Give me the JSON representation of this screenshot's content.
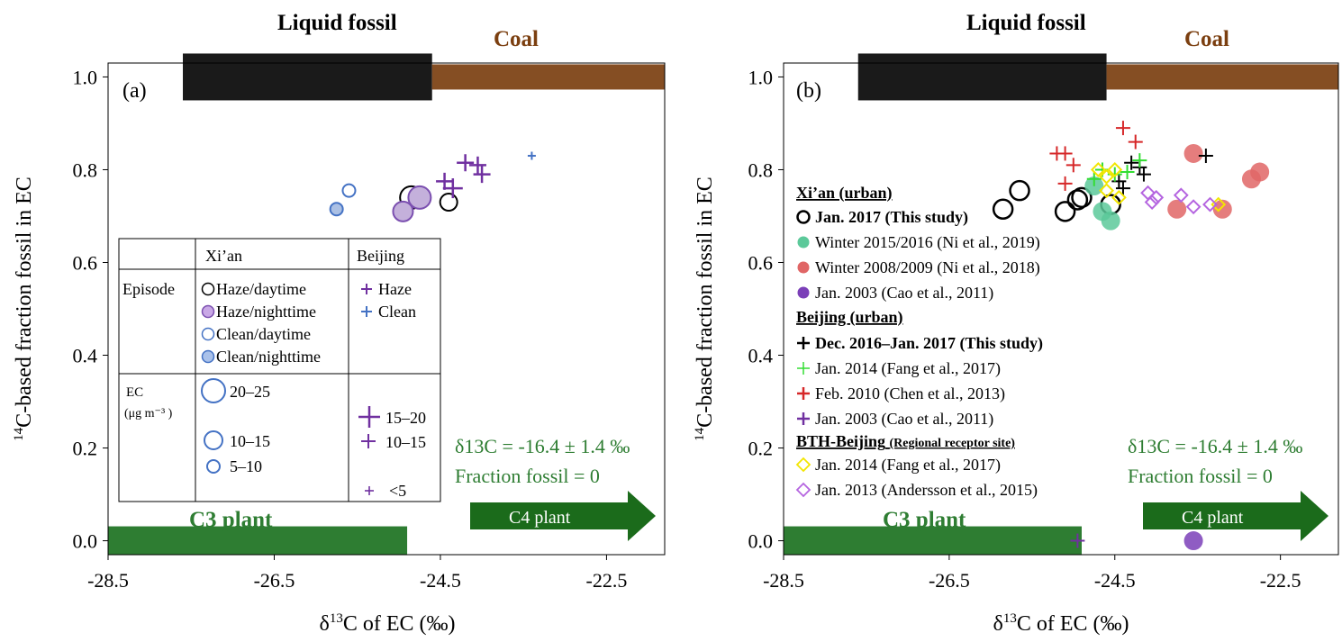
{
  "chart_data": [
    {
      "type": "scatter",
      "panel_label": "(a)",
      "xlabel": "δ13C of EC (‰)",
      "ylabel": "14C-based fraction fossil in EC",
      "xlim": [
        -28.5,
        -21.8
      ],
      "ylim": [
        -0.03,
        1.03
      ],
      "x_ticks": [
        "-28.5",
        "-26.5",
        "-24.5",
        "-22.5"
      ],
      "y_ticks": [
        "0.0",
        "0.2",
        "0.4",
        "0.6",
        "0.8",
        "1.0"
      ],
      "source_bands": [
        {
          "name": "Liquid fossil",
          "x_range": [
            -27.6,
            -24.6
          ],
          "y": 1.0,
          "color": "#1a1a1a"
        },
        {
          "name": "Coal",
          "x_range": [
            -24.6,
            -21.8
          ],
          "y": 1.0,
          "color": "#7b3f10"
        },
        {
          "name": "C3 plant",
          "x_range": [
            -28.5,
            -24.9
          ],
          "y": 0.0,
          "color": "#2e7d32"
        }
      ],
      "c4_arrow": {
        "label": "C4 plant",
        "color": "#1b6b1b"
      },
      "c4_annotation": [
        "δ13C = -16.4 ± 1.4 ‰",
        "Fraction fossil = 0"
      ],
      "series": [
        {
          "name": "Haze/daytime",
          "city": "Xi'an",
          "marker": "circle-open",
          "color": "#000000",
          "points": [
            {
              "x": -24.85,
              "y": 0.74,
              "size": "20–25"
            },
            {
              "x": -24.4,
              "y": 0.73,
              "size": "10–15"
            }
          ]
        },
        {
          "name": "Haze/nighttime",
          "city": "Xi'an",
          "marker": "circle-filled",
          "color": "#7b4fb0",
          "points": [
            {
              "x": -24.75,
              "y": 0.74,
              "size": "20–25"
            },
            {
              "x": -24.95,
              "y": 0.71,
              "size": "15–20"
            }
          ]
        },
        {
          "name": "Clean/daytime",
          "city": "Xi'an",
          "marker": "circle-open",
          "color": "#4472c4",
          "points": [
            {
              "x": -25.6,
              "y": 0.755,
              "size": "5–10"
            }
          ]
        },
        {
          "name": "Clean/nighttime",
          "city": "Xi'an",
          "marker": "circle-filled",
          "color": "#4472c4",
          "points": [
            {
              "x": -25.75,
              "y": 0.715,
              "size": "5–10"
            }
          ]
        },
        {
          "name": "Haze",
          "city": "Beijing",
          "marker": "plus",
          "color": "#7030a0",
          "points": [
            {
              "x": -24.2,
              "y": 0.815,
              "size": "10–15"
            },
            {
              "x": -24.05,
              "y": 0.81,
              "size": "10–15"
            },
            {
              "x": -24.0,
              "y": 0.79,
              "size": "10–15"
            },
            {
              "x": -24.45,
              "y": 0.775,
              "size": "10–15"
            },
            {
              "x": -24.35,
              "y": 0.76,
              "size": "15–20"
            }
          ]
        },
        {
          "name": "Clean",
          "city": "Beijing",
          "marker": "plus",
          "color": "#4472c4",
          "points": [
            {
              "x": -23.4,
              "y": 0.83,
              "size": "<5"
            }
          ]
        }
      ],
      "legend_table": {
        "header": [
          "",
          "Xi’an",
          "Beijing"
        ],
        "episode_label": "Episode",
        "episode_xian": [
          "Haze/daytime",
          "Haze/nighttime",
          "Clean/daytime",
          "Clean/nighttime"
        ],
        "episode_beijing": [
          "Haze",
          "Clean"
        ],
        "ec_label": "EC",
        "ec_unit": "(μg m⁻³ )",
        "ec_xian": [
          "20–25",
          "10–15",
          "5–10"
        ],
        "ec_beijing": [
          "15–20",
          "10–15",
          "<5"
        ]
      }
    },
    {
      "type": "scatter",
      "panel_label": "(b)",
      "xlabel": "δ13C of EC (‰)",
      "ylabel": "14C-based fraction fossil in EC",
      "xlim": [
        -28.5,
        -21.8
      ],
      "ylim": [
        -0.03,
        1.03
      ],
      "x_ticks": [
        "-28.5",
        "-26.5",
        "-24.5",
        "-22.5"
      ],
      "y_ticks": [
        "0.0",
        "0.2",
        "0.4",
        "0.6",
        "0.8",
        "1.0"
      ],
      "source_bands": [
        {
          "name": "Liquid fossil",
          "x_range": [
            -27.6,
            -24.6
          ],
          "y": 1.0,
          "color": "#1a1a1a"
        },
        {
          "name": "Coal",
          "x_range": [
            -24.6,
            -21.8
          ],
          "y": 1.0,
          "color": "#7b3f10"
        },
        {
          "name": "C3 plant",
          "x_range": [
            -28.5,
            -24.9
          ],
          "y": 0.0,
          "color": "#2e7d32"
        }
      ],
      "c4_arrow": {
        "label": "C4 plant",
        "color": "#1b6b1b"
      },
      "c4_annotation": [
        "δ13C = -16.4 ± 1.4 ‰",
        "Fraction fossil = 0"
      ],
      "legend_groups": [
        {
          "title": "Xi’an (urban)",
          "entries": [
            {
              "label": "Jan. 2017 (This study)",
              "bold": true,
              "series": 0
            },
            {
              "label": "Winter 2015/2016 (Ni et al., 2019)",
              "series": 1
            },
            {
              "label": "Winter 2008/2009 (Ni et al., 2018)",
              "series": 2
            },
            {
              "label": "Jan. 2003 (Cao et al., 2011)",
              "series": 3
            }
          ]
        },
        {
          "title": "Beijing (urban)",
          "entries": [
            {
              "label": "Dec. 2016–Jan. 2017 (This study)",
              "bold": true,
              "series": 4
            },
            {
              "label": "Jan. 2014 (Fang et al., 2017)",
              "series": 5
            },
            {
              "label": "Feb. 2010 (Chen et al., 2013)",
              "series": 6
            },
            {
              "label": "Jan. 2003 (Cao et al., 2011)",
              "series": 7
            }
          ]
        },
        {
          "title": "BTH-Beijing",
          "title_note": "(Regional receptor site)",
          "entries": [
            {
              "label": "Jan. 2014 (Fang  et al., 2017)",
              "series": 8
            },
            {
              "label": "Jan. 2013 (Andersson et al., 2015)",
              "series": 9
            }
          ]
        }
      ],
      "series": [
        {
          "name": "Jan. 2017 (This study)",
          "city": "Xi'an",
          "marker": "circle-open",
          "color": "#000000",
          "points": [
            {
              "x": -25.65,
              "y": 0.755
            },
            {
              "x": -25.85,
              "y": 0.715
            },
            {
              "x": -24.9,
              "y": 0.74
            },
            {
              "x": -24.95,
              "y": 0.735
            },
            {
              "x": -25.1,
              "y": 0.71
            },
            {
              "x": -24.55,
              "y": 0.725
            }
          ]
        },
        {
          "name": "Winter 2015/2016 (Ni et al., 2019)",
          "city": "Xi'an",
          "marker": "circle-filled",
          "color": "#5cc99a",
          "points": [
            {
              "x": -24.75,
              "y": 0.765
            },
            {
              "x": -24.65,
              "y": 0.71
            },
            {
              "x": -24.55,
              "y": 0.69
            }
          ]
        },
        {
          "name": "Winter 2008/2009 (Ni et al., 2018)",
          "city": "Xi'an",
          "marker": "circle-filled",
          "color": "#e06666",
          "points": [
            {
              "x": -23.55,
              "y": 0.835
            },
            {
              "x": -22.75,
              "y": 0.795
            },
            {
              "x": -22.85,
              "y": 0.78
            },
            {
              "x": -23.75,
              "y": 0.715
            },
            {
              "x": -23.2,
              "y": 0.715
            }
          ]
        },
        {
          "name": "Jan. 2003 (Cao et al., 2011)",
          "city": "Xi'an",
          "marker": "circle-filled",
          "color": "#7b3fb8",
          "points": [
            {
              "x": -23.55,
              "y": 0.0
            }
          ]
        },
        {
          "name": "Dec. 2016–Jan. 2017 (This study)",
          "city": "Beijing",
          "marker": "plus",
          "color": "#000000",
          "points": [
            {
              "x": -23.4,
              "y": 0.83
            },
            {
              "x": -24.3,
              "y": 0.815
            },
            {
              "x": -24.2,
              "y": 0.805
            },
            {
              "x": -24.15,
              "y": 0.79
            },
            {
              "x": -24.45,
              "y": 0.775
            },
            {
              "x": -24.4,
              "y": 0.76
            }
          ]
        },
        {
          "name": "Jan. 2014 (Fang et al., 2017)",
          "city": "Beijing",
          "marker": "plus",
          "color": "#33dd33",
          "points": [
            {
              "x": -24.65,
              "y": 0.8
            },
            {
              "x": -24.5,
              "y": 0.79
            },
            {
              "x": -24.2,
              "y": 0.82
            },
            {
              "x": -24.75,
              "y": 0.78
            },
            {
              "x": -24.35,
              "y": 0.795
            }
          ]
        },
        {
          "name": "Feb. 2010 (Chen et al., 2013)",
          "city": "Beijing",
          "marker": "plus",
          "color": "#d62728",
          "points": [
            {
              "x": -25.2,
              "y": 0.835
            },
            {
              "x": -25.1,
              "y": 0.835
            },
            {
              "x": -25.0,
              "y": 0.81
            },
            {
              "x": -24.4,
              "y": 0.89
            },
            {
              "x": -24.25,
              "y": 0.86
            },
            {
              "x": -25.1,
              "y": 0.77
            }
          ]
        },
        {
          "name": "Jan. 2003 (Cao et al., 2011)",
          "city": "Beijing",
          "marker": "plus",
          "color": "#7030a0",
          "points": [
            {
              "x": -24.95,
              "y": 0.0
            }
          ]
        },
        {
          "name": "Jan. 2014 (Fang  et al., 2017)",
          "city": "BTH-Beijing",
          "marker": "diamond-open",
          "color": "#f2e600",
          "points": [
            {
              "x": -24.7,
              "y": 0.8
            },
            {
              "x": -24.6,
              "y": 0.785
            },
            {
              "x": -24.5,
              "y": 0.8
            },
            {
              "x": -24.6,
              "y": 0.755
            },
            {
              "x": -24.45,
              "y": 0.74
            },
            {
              "x": -23.25,
              "y": 0.725
            }
          ]
        },
        {
          "name": "Jan. 2013 (Andersson et al., 2015)",
          "city": "BTH-Beijing",
          "marker": "diamond-open",
          "color": "#b565e0",
          "points": [
            {
              "x": -24.1,
              "y": 0.75
            },
            {
              "x": -24.0,
              "y": 0.74
            },
            {
              "x": -23.7,
              "y": 0.745
            },
            {
              "x": -23.55,
              "y": 0.72
            },
            {
              "x": -23.35,
              "y": 0.725
            },
            {
              "x": -24.05,
              "y": 0.73
            }
          ]
        }
      ]
    }
  ]
}
